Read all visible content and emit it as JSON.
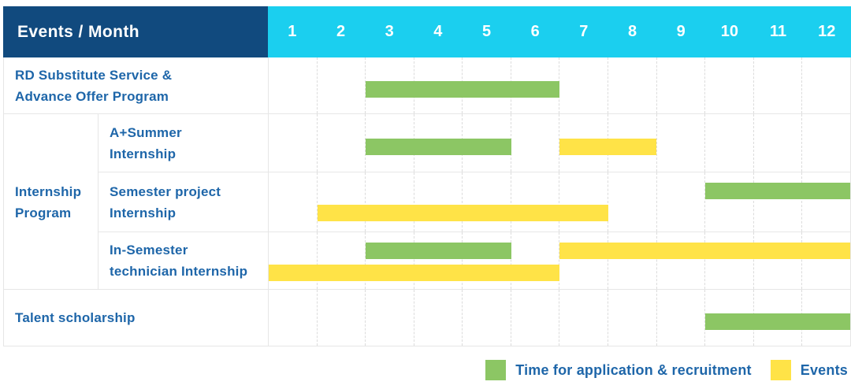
{
  "colors": {
    "navy": "#114A7E",
    "cyan": "#1BCFEF",
    "green": "#8CC664",
    "yellow": "#FFE347",
    "label_text": "#1E66A9",
    "grid": "#E6E6E6",
    "grid_dashed": "#DCDCDC",
    "header_text": "#FFFFFF"
  },
  "header": {
    "title": "Events / Month",
    "months": [
      "1",
      "2",
      "3",
      "4",
      "5",
      "6",
      "7",
      "8",
      "9",
      "10",
      "11",
      "12"
    ]
  },
  "legend": [
    {
      "key": "green",
      "label": "Time for application & recruitment"
    },
    {
      "key": "yellow",
      "label": "Events"
    }
  ],
  "chart_data": {
    "type": "bar",
    "subtype": "gantt-schedule-table",
    "title": "Events / Month",
    "x_categories": [
      "1",
      "2",
      "3",
      "4",
      "5",
      "6",
      "7",
      "8",
      "9",
      "10",
      "11",
      "12"
    ],
    "x_range": [
      1,
      12
    ],
    "grid": "on",
    "legend_position": "bottom-right",
    "series_legend": {
      "green": "Time for application & recruitment",
      "yellow": "Events"
    },
    "group_label": "Internship Program",
    "rows": [
      {
        "group": "",
        "label_lines": [
          "RD Substitute Service &",
          "Advance Offer Program"
        ],
        "lines": 1,
        "bars": [
          {
            "color": "green",
            "start_month": 3,
            "end_month": 6,
            "line": 0
          }
        ]
      },
      {
        "group": "Internship Program",
        "label_lines": [
          "A+Summer",
          "Internship"
        ],
        "lines": 1,
        "bars": [
          {
            "color": "green",
            "start_month": 3,
            "end_month": 5,
            "line": 0
          },
          {
            "color": "yellow",
            "start_month": 7,
            "end_month": 8,
            "line": 0
          }
        ]
      },
      {
        "group": "Internship Program",
        "label_lines": [
          "Semester project",
          "Internship"
        ],
        "lines": 2,
        "bars": [
          {
            "color": "green",
            "start_month": 10,
            "end_month": 12,
            "line": 0
          },
          {
            "color": "yellow",
            "start_month": 2,
            "end_month": 7,
            "line": 1
          }
        ]
      },
      {
        "group": "Internship Program",
        "label_lines": [
          "In-Semester",
          "technician Internship"
        ],
        "lines": 2,
        "bars": [
          {
            "color": "green",
            "start_month": 3,
            "end_month": 5,
            "line": 0
          },
          {
            "color": "yellow",
            "start_month": 7,
            "end_month": 12,
            "line": 0
          },
          {
            "color": "yellow",
            "start_month": 1,
            "end_month": 6,
            "line": 1
          }
        ]
      },
      {
        "group": "",
        "label_lines": [
          "Talent scholarship"
        ],
        "lines": 1,
        "bars": [
          {
            "color": "green",
            "start_month": 10,
            "end_month": 12,
            "line": 0
          }
        ]
      }
    ]
  }
}
